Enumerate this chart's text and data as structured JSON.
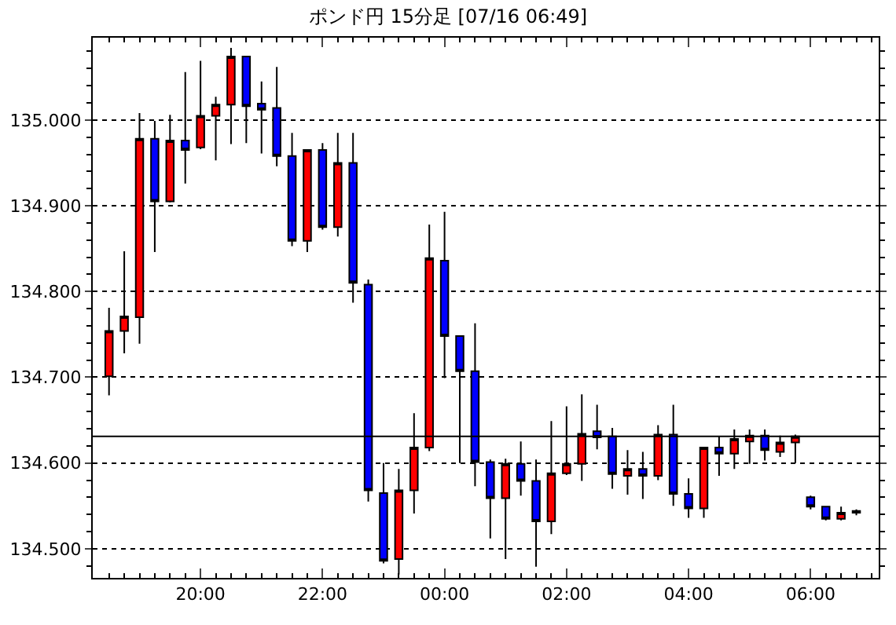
{
  "chart_data": {
    "type": "candlestick",
    "title": "ポンド円 15分足 [07/16 06:49]",
    "x": [
      "--07-15T18:30",
      "--07-15T18:45",
      "--07-15T19:00",
      "--07-15T19:15",
      "--07-15T19:30",
      "--07-15T19:45",
      "--07-15T20:00",
      "--07-15T20:15",
      "--07-15T20:30",
      "--07-15T20:45",
      "--07-15T21:00",
      "--07-15T21:15",
      "--07-15T21:30",
      "--07-15T21:45",
      "--07-15T22:00",
      "--07-15T22:15",
      "--07-15T22:30",
      "--07-15T22:45",
      "--07-15T23:00",
      "--07-15T23:15",
      "--07-15T23:30",
      "--07-15T23:45",
      "--07-16T00:00",
      "--07-16T00:15",
      "--07-16T00:30",
      "--07-16T00:45",
      "--07-16T01:00",
      "--07-16T01:15",
      "--07-16T01:30",
      "--07-16T01:45",
      "--07-16T02:00",
      "--07-16T02:15",
      "--07-16T02:30",
      "--07-16T02:45",
      "--07-16T03:00",
      "--07-16T03:15",
      "--07-16T03:30",
      "--07-16T03:45",
      "--07-16T04:00",
      "--07-16T04:15",
      "--07-16T04:30",
      "--07-16T04:45",
      "--07-16T05:00",
      "--07-16T05:15",
      "--07-16T05:30",
      "--07-16T05:45",
      "--07-16T06:00",
      "--07-16T06:15",
      "--07-16T06:30",
      "--07-16T06:45"
    ],
    "ohlc": [
      [
        134.701,
        134.781,
        134.679,
        134.754
      ],
      [
        134.754,
        134.847,
        134.728,
        134.771
      ],
      [
        134.77,
        135.008,
        134.739,
        134.978
      ],
      [
        134.978,
        134.999,
        134.846,
        134.905
      ],
      [
        134.905,
        135.006,
        134.904,
        134.976
      ],
      [
        134.976,
        135.056,
        134.926,
        134.965
      ],
      [
        134.968,
        135.069,
        134.966,
        135.005
      ],
      [
        135.005,
        135.027,
        134.953,
        135.018
      ],
      [
        135.018,
        135.084,
        134.972,
        135.074
      ],
      [
        135.074,
        135.074,
        134.973,
        135.016
      ],
      [
        135.019,
        135.045,
        134.961,
        135.012
      ],
      [
        135.014,
        135.062,
        134.946,
        134.958
      ],
      [
        134.958,
        134.985,
        134.853,
        134.859
      ],
      [
        134.859,
        134.965,
        134.846,
        134.965
      ],
      [
        134.965,
        134.973,
        134.872,
        134.875
      ],
      [
        134.875,
        134.985,
        134.864,
        134.95
      ],
      [
        134.95,
        134.985,
        134.787,
        134.81
      ],
      [
        134.808,
        134.814,
        134.555,
        134.568
      ],
      [
        134.565,
        134.6,
        134.483,
        134.486
      ],
      [
        134.488,
        134.593,
        134.47,
        134.568
      ],
      [
        134.568,
        134.658,
        134.541,
        134.618
      ],
      [
        134.618,
        134.878,
        134.614,
        134.839
      ],
      [
        134.836,
        134.893,
        134.699,
        134.748
      ],
      [
        134.748,
        134.748,
        134.6,
        134.707
      ],
      [
        134.707,
        134.763,
        134.573,
        134.601
      ],
      [
        134.601,
        134.604,
        134.512,
        134.559
      ],
      [
        134.559,
        134.605,
        134.488,
        134.599
      ],
      [
        134.599,
        134.625,
        134.562,
        134.579
      ],
      [
        134.579,
        134.604,
        134.479,
        134.532
      ],
      [
        134.532,
        134.649,
        134.517,
        134.588
      ],
      [
        134.588,
        134.666,
        134.586,
        134.599
      ],
      [
        134.599,
        134.68,
        134.579,
        134.634
      ],
      [
        134.637,
        134.668,
        134.616,
        134.63
      ],
      [
        134.631,
        134.641,
        134.57,
        134.587
      ],
      [
        134.585,
        134.615,
        134.563,
        134.593
      ],
      [
        134.593,
        134.613,
        134.558,
        134.585
      ],
      [
        134.585,
        134.644,
        134.58,
        134.633
      ],
      [
        134.633,
        134.668,
        134.55,
        134.564
      ],
      [
        134.564,
        134.582,
        134.536,
        134.547
      ],
      [
        134.547,
        134.618,
        134.536,
        134.618
      ],
      [
        134.618,
        134.631,
        134.585,
        134.611
      ],
      [
        134.611,
        134.639,
        134.593,
        134.628
      ],
      [
        134.625,
        134.639,
        134.599,
        134.632
      ],
      [
        134.632,
        134.639,
        134.603,
        134.615
      ],
      [
        134.613,
        134.632,
        134.607,
        134.624
      ],
      [
        134.624,
        134.633,
        134.6,
        134.631
      ],
      [
        134.56,
        134.562,
        134.546,
        134.549
      ],
      [
        134.549,
        134.549,
        134.533,
        134.535
      ],
      [
        134.535,
        134.549,
        134.533,
        134.542
      ],
      [
        134.544,
        134.546,
        134.539,
        134.542
      ]
    ],
    "colors": [
      "#ff0000",
      "#ff0000",
      "#ff0000",
      "#0000ff",
      "#ff0000",
      "#0000ff",
      "#ff0000",
      "#ff0000",
      "#ff0000",
      "#0000ff",
      "#0000ff",
      "#0000ff",
      "#0000ff",
      "#ff0000",
      "#0000ff",
      "#ff0000",
      "#0000ff",
      "#0000ff",
      "#0000ff",
      "#ff0000",
      "#ff0000",
      "#ff0000",
      "#0000ff",
      "#0000ff",
      "#0000ff",
      "#0000ff",
      "#ff0000",
      "#0000ff",
      "#0000ff",
      "#ff0000",
      "#ff0000",
      "#ff0000",
      "#0000ff",
      "#0000ff",
      "#ff0000",
      "#0000ff",
      "#ff0000",
      "#0000ff",
      "#0000ff",
      "#ff0000",
      "#0000ff",
      "#ff0000",
      "#ff0000",
      "#0000ff",
      "#ff0000",
      "#ff0000",
      "#0000ff",
      "#0000ff",
      "#ff0000",
      "#0000ff"
    ],
    "xlim": [
      "--07-15T18:14",
      "--07-16T07:07"
    ],
    "xticks": [
      {
        "value": "--07-15T20:00",
        "label": "20:00"
      },
      {
        "value": "--07-15T22:00",
        "label": "22:00"
      },
      {
        "value": "--07-16T00:00",
        "label": "00:00"
      },
      {
        "value": "--07-16T02:00",
        "label": "02:00"
      },
      {
        "value": "--07-16T04:00",
        "label": "04:00"
      },
      {
        "value": "--07-16T06:00",
        "label": "06:00"
      }
    ],
    "ylim": [
      134.466,
      135.096
    ],
    "yticks": [
      {
        "value": 134.5,
        "label": "134.500"
      },
      {
        "value": 134.6,
        "label": "134.600"
      },
      {
        "value": 134.7,
        "label": "134.700"
      },
      {
        "value": 134.8,
        "label": "134.800"
      },
      {
        "value": 134.9,
        "label": "134.900"
      },
      {
        "value": 135.0,
        "label": "135.000"
      }
    ],
    "grid": "y",
    "ref_lines": [
      {
        "axis": "y",
        "value": 134.631,
        "color": "#000000"
      }
    ]
  }
}
